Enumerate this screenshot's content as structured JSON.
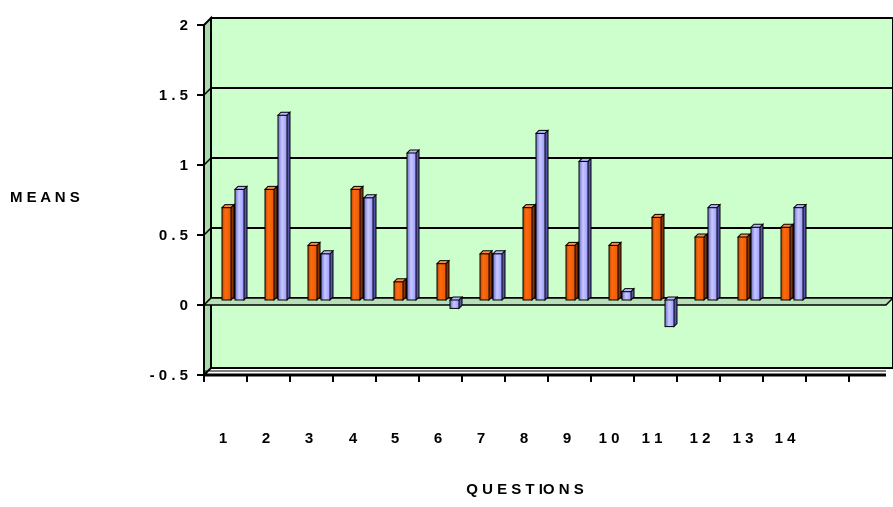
{
  "chart_data": {
    "type": "bar",
    "title": "",
    "xlabel": "Q U E S T IO N S",
    "ylabel": "M E A N S",
    "ylim": [
      -0.5,
      2
    ],
    "yticks": [
      -0.5,
      0,
      0.5,
      1,
      1.5,
      2
    ],
    "ytick_labels": [
      "- 0 . 5",
      "0",
      "0 . 5",
      "1",
      "1 . 5",
      "2"
    ],
    "categories": [
      "1",
      "2",
      "3",
      "4",
      "5",
      "6",
      "7",
      "8",
      "9",
      "1 0",
      "1 1",
      "1 2",
      "1 3",
      "1 4"
    ],
    "series": [
      {
        "values": [
          0.66,
          0.79,
          0.39,
          0.79,
          0.13,
          0.26,
          0.33,
          0.66,
          0.39,
          0.39,
          0.59,
          0.45,
          0.45,
          0.52
        ]
      },
      {
        "values": [
          0.79,
          1.32,
          0.33,
          0.73,
          1.05,
          -0.06,
          0.33,
          1.19,
          0.99,
          0.06,
          -0.19,
          0.66,
          0.52,
          0.66
        ]
      }
    ],
    "colors": {
      "plot_background": "#ccffcc",
      "series_1": "#ff6600",
      "series_2": "#9999ff",
      "gridlines": "#000000"
    },
    "grid": true,
    "legend": "none"
  }
}
